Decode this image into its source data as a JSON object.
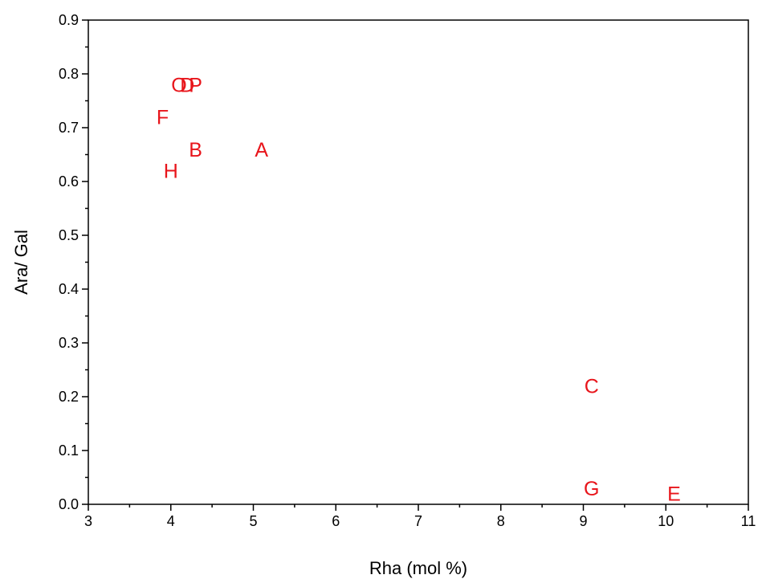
{
  "chart_data": {
    "type": "scatter",
    "title": "",
    "xlabel": "Rha (mol %)",
    "ylabel": "Ara/ Gal",
    "xlim": [
      3,
      11
    ],
    "ylim": [
      0.0,
      0.9
    ],
    "x_ticks": [
      3,
      4,
      5,
      6,
      7,
      8,
      9,
      10,
      11
    ],
    "y_ticks": [
      0.0,
      0.1,
      0.2,
      0.3,
      0.4,
      0.5,
      0.6,
      0.7,
      0.8,
      0.9
    ],
    "x_tick_labels": [
      "3",
      "4",
      "5",
      "6",
      "7",
      "8",
      "9",
      "10",
      "11"
    ],
    "y_tick_labels": [
      "0.0",
      "0.1",
      "0.2",
      "0.3",
      "0.4",
      "0.5",
      "0.6",
      "0.7",
      "0.8",
      "0.9"
    ],
    "grid": false,
    "marker_color": "#e8151b",
    "points": [
      {
        "label": "A",
        "x": 5.1,
        "y": 0.66
      },
      {
        "label": "B",
        "x": 4.3,
        "y": 0.66
      },
      {
        "label": "C",
        "x": 9.1,
        "y": 0.22
      },
      {
        "label": "D",
        "x": 4.2,
        "y": 0.78
      },
      {
        "label": "E",
        "x": 10.1,
        "y": 0.02
      },
      {
        "label": "F",
        "x": 3.9,
        "y": 0.72
      },
      {
        "label": "G",
        "x": 9.1,
        "y": 0.03
      },
      {
        "label": "H",
        "x": 4.0,
        "y": 0.62
      },
      {
        "label": "O",
        "x": 4.1,
        "y": 0.78
      },
      {
        "label": "P",
        "x": 4.3,
        "y": 0.78
      }
    ]
  }
}
